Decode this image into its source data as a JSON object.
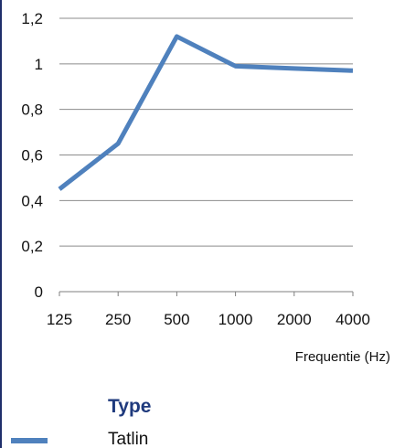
{
  "chart_data": {
    "type": "line",
    "title": "",
    "xlabel": "Frequentie (Hz)",
    "ylabel": "",
    "categories": [
      "125",
      "250",
      "500",
      "1000",
      "2000",
      "4000"
    ],
    "series": [
      {
        "name": "Tatlin",
        "values": [
          0.45,
          0.65,
          1.12,
          0.99,
          0.98,
          0.97
        ],
        "color": "#4f81bd"
      }
    ],
    "ylim": [
      0,
      1.2
    ],
    "yticks": [
      "0",
      "0,2",
      "0,4",
      "0,6",
      "0,8",
      "1",
      "1,2"
    ],
    "grid": true,
    "legend": {
      "title": "Type",
      "placement": "bottom-left"
    }
  }
}
